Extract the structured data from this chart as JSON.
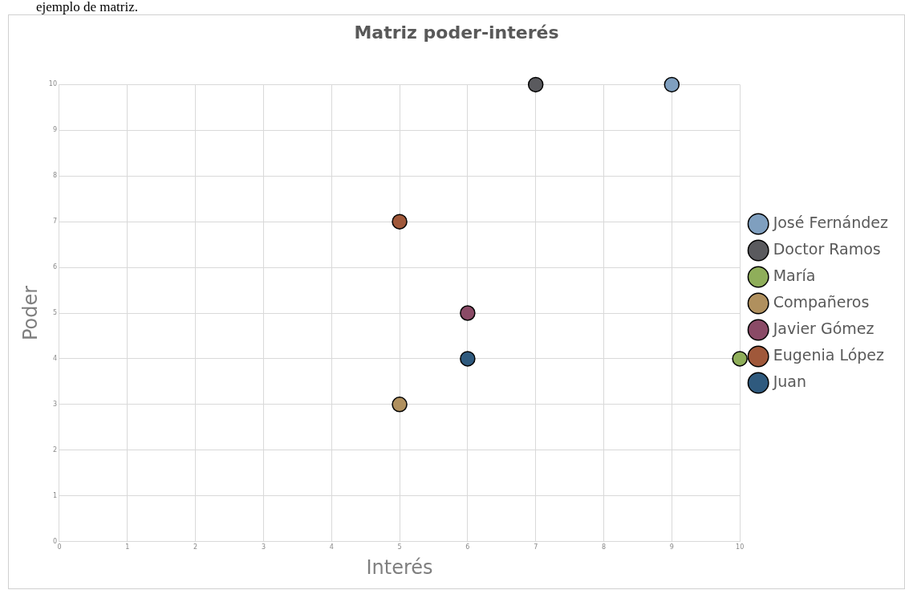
{
  "chart_data": {
    "type": "scatter",
    "title": "Matriz poder-interés",
    "xlabel": "Interés",
    "ylabel": "Poder",
    "annotations": [
      "ejemplo de matriz."
    ],
    "xlim": [
      0,
      10
    ],
    "xticks": [
      0,
      1,
      2,
      3,
      4,
      5,
      6,
      7,
      8,
      9,
      10
    ],
    "ylim": [
      0,
      10
    ],
    "yticks": [
      0,
      1,
      2,
      3,
      4,
      5,
      6,
      7,
      8,
      9,
      10
    ],
    "grid": true,
    "legend": "right",
    "marker": "circle",
    "series": [
      {
        "name": "José Fernández",
        "color": "#7f9fbf",
        "x": [
          9
        ],
        "values": [
          10
        ]
      },
      {
        "name": "Doctor Ramos",
        "color": "#5a5a5e",
        "x": [
          7
        ],
        "values": [
          10
        ]
      },
      {
        "name": "María",
        "color": "#8fae5a",
        "x": [
          10
        ],
        "values": [
          4
        ]
      },
      {
        "name": "Compañeros",
        "color": "#b0905e",
        "x": [
          5
        ],
        "values": [
          3
        ]
      },
      {
        "name": "Javier Gómez",
        "color": "#8a4a66",
        "x": [
          6
        ],
        "values": [
          5
        ]
      },
      {
        "name": "Eugenia López",
        "color": "#a0583a",
        "x": [
          5
        ],
        "values": [
          7
        ]
      },
      {
        "name": "Juan",
        "color": "#2f5a7e",
        "x": [
          6
        ],
        "values": [
          4
        ]
      }
    ]
  }
}
